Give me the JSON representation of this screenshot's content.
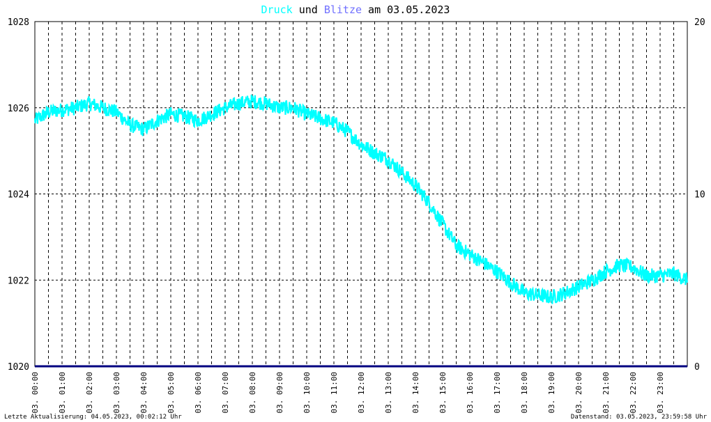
{
  "title": {
    "part1": "Druck",
    "part2": " und ",
    "part3": "Blitze",
    "part4": " am 03.05.2023"
  },
  "footer": {
    "left": "Letzte Aktualisierung: 04.05.2023, 00:02:12 Uhr",
    "right": "Datenstand: 03.05.2023, 23:59:58 Uhr"
  },
  "colors": {
    "background": "#ffffff",
    "pressure": "#00ffff",
    "lightning": "#7070ff",
    "lightning_line": "#000080",
    "grid": "#000000",
    "text": "#000000",
    "title_default": "#000000"
  },
  "chart_data": {
    "type": "line",
    "title": "Druck und Blitze am 03.05.2023",
    "x_tick_labels": [
      "03. 00:00",
      "03. 01:00",
      "03. 02:00",
      "03. 03:00",
      "03. 04:00",
      "03. 05:00",
      "03. 06:00",
      "03. 07:00",
      "03. 08:00",
      "03. 09:00",
      "03. 10:00",
      "03. 11:00",
      "03. 12:00",
      "03. 13:00",
      "03. 14:00",
      "03. 15:00",
      "03. 16:00",
      "03. 17:00",
      "03. 18:00",
      "03. 19:00",
      "03. 20:00",
      "03. 21:00",
      "03. 22:00",
      "03. 23:00"
    ],
    "left_axis": {
      "ylim": [
        1020,
        1028
      ],
      "ticks": [
        "1020",
        "1022",
        "1024",
        "1026",
        "1028"
      ]
    },
    "right_axis": {
      "ylim": [
        0,
        20
      ],
      "ticks": [
        "0",
        "10",
        "20"
      ]
    },
    "grid": true,
    "series": [
      {
        "name": "Druck",
        "axis": "left",
        "x": [
          0,
          0.5,
          1,
          1.5,
          2,
          2.5,
          3,
          3.5,
          4,
          4.5,
          5,
          5.5,
          6,
          6.5,
          7,
          7.5,
          8,
          8.5,
          9,
          9.5,
          10,
          10.5,
          11,
          11.5,
          12,
          12.5,
          13,
          13.5,
          14,
          14.5,
          15,
          15.5,
          16,
          16.5,
          17,
          17.5,
          18,
          18.5,
          19,
          19.5,
          20,
          20.5,
          21,
          21.5,
          22,
          22.5,
          23,
          23.5,
          24
        ],
        "values": [
          1025.7,
          1025.9,
          1025.95,
          1026.0,
          1026.1,
          1026.0,
          1025.9,
          1025.6,
          1025.5,
          1025.7,
          1025.85,
          1025.8,
          1025.7,
          1025.85,
          1026.0,
          1026.1,
          1026.15,
          1026.1,
          1026.0,
          1026.0,
          1025.85,
          1025.75,
          1025.65,
          1025.45,
          1025.15,
          1024.95,
          1024.8,
          1024.5,
          1024.2,
          1023.8,
          1023.3,
          1022.8,
          1022.6,
          1022.4,
          1022.2,
          1021.95,
          1021.7,
          1021.65,
          1021.6,
          1021.7,
          1021.85,
          1022.0,
          1022.2,
          1022.35,
          1022.3,
          1022.1,
          1022.1,
          1022.15,
          1022.0
        ]
      },
      {
        "name": "Blitze",
        "axis": "right",
        "x": [
          0,
          24
        ],
        "values": [
          0,
          0
        ]
      }
    ]
  }
}
